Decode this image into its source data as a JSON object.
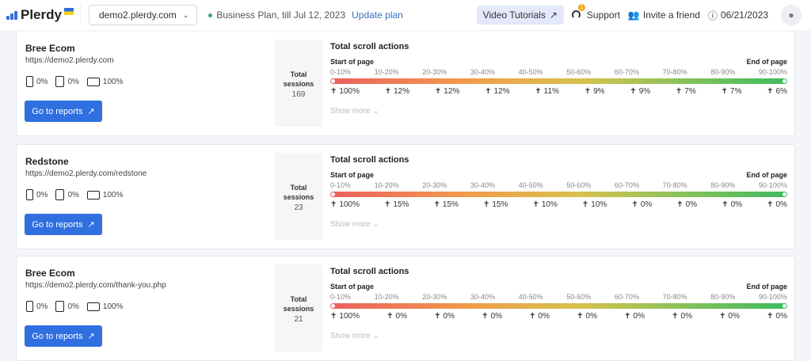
{
  "header": {
    "logo": "Plerdy",
    "domain": "demo2.plerdy.com",
    "plan": "Business Plan, till Jul 12, 2023",
    "update_plan": "Update plan",
    "video_tutorials": "Video Tutorials",
    "support": "Support",
    "support_badge": "1",
    "invite": "Invite a friend",
    "date": "06/21/2023"
  },
  "labels": {
    "total_sessions_1": "Total",
    "total_sessions_2": "sessions",
    "scroll_title": "Total scroll actions",
    "start": "Start of page",
    "end": "End of page",
    "go": "Go to reports",
    "show_more": "Show more",
    "ranges": [
      "0-10%",
      "10-20%",
      "20-30%",
      "30-40%",
      "40-50%",
      "50-60%",
      "60-70%",
      "70-80%",
      "80-90%",
      "90-100%"
    ]
  },
  "cards": [
    {
      "name": "Bree Ecom",
      "url": "https://demo2.plerdy.com",
      "mobile": "0%",
      "tablet": "0%",
      "desktop": "100%",
      "sessions": "169",
      "values": [
        "100%",
        "12%",
        "12%",
        "12%",
        "11%",
        "9%",
        "9%",
        "7%",
        "7%",
        "6%"
      ]
    },
    {
      "name": "Redstone",
      "url": "https://demo2.plerdy.com/redstone",
      "mobile": "0%",
      "tablet": "0%",
      "desktop": "100%",
      "sessions": "23",
      "values": [
        "100%",
        "15%",
        "15%",
        "15%",
        "10%",
        "10%",
        "0%",
        "0%",
        "0%",
        "0%"
      ]
    },
    {
      "name": "Bree Ecom",
      "url": "https://demo2.plerdy.com/thank-you.php",
      "mobile": "0%",
      "tablet": "0%",
      "desktop": "100%",
      "sessions": "21",
      "values": [
        "100%",
        "0%",
        "0%",
        "0%",
        "0%",
        "0%",
        "0%",
        "0%",
        "0%",
        "0%"
      ]
    }
  ]
}
